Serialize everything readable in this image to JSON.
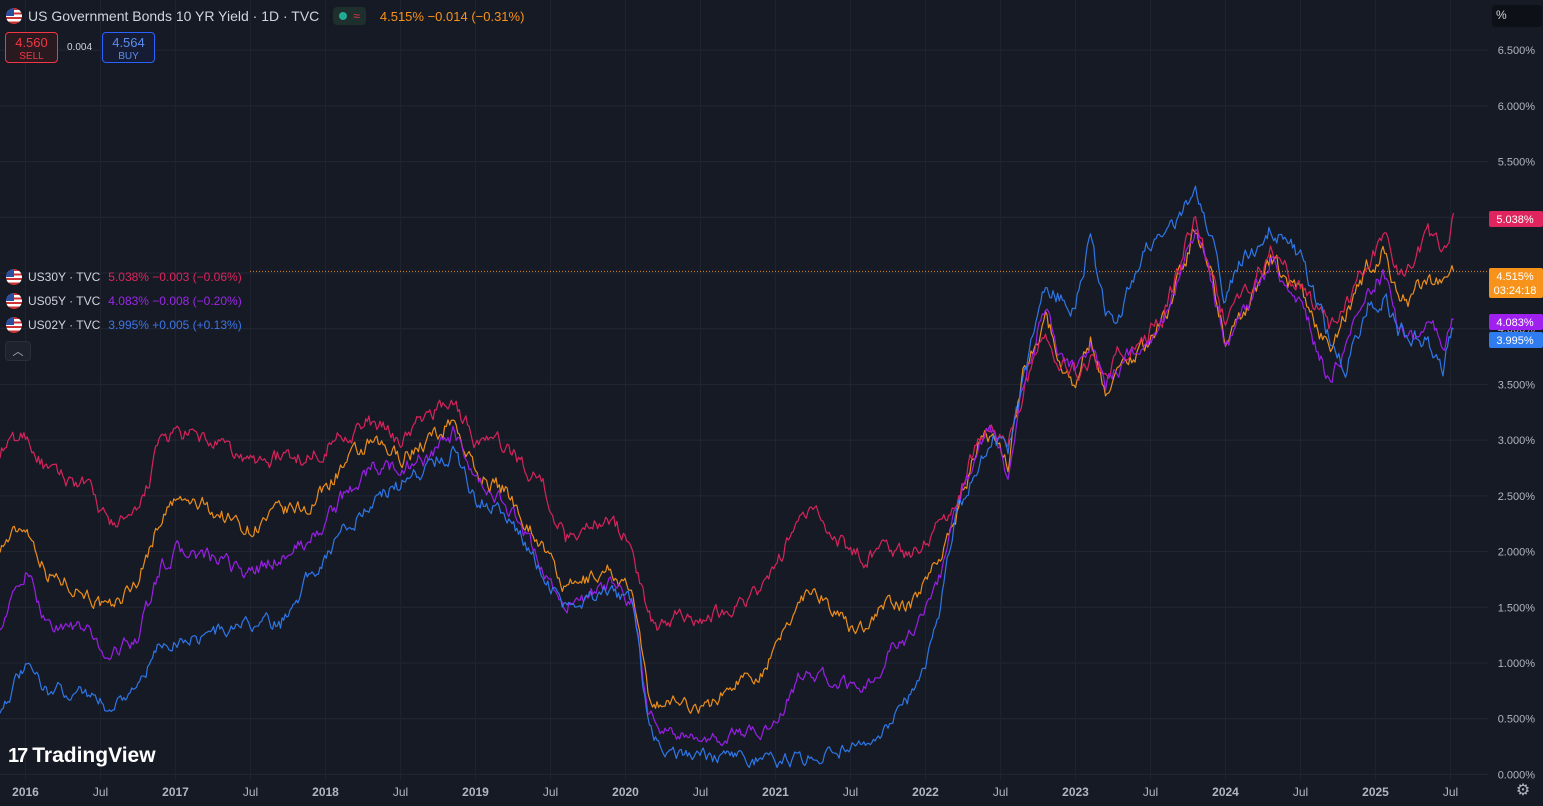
{
  "header": {
    "title": "US Government Bonds 10 YR Yield · 1D · TVC",
    "price_change": "4.515%  −0.014 (−0.31%)",
    "market_status_icon": "open-dot-icon",
    "wave_icon": "≈"
  },
  "trade": {
    "sell_value": "4.560",
    "sell_label": "SELL",
    "spread": "0.004",
    "buy_value": "4.564",
    "buy_label": "BUY"
  },
  "legend_series": [
    {
      "symbol": "US30Y · TVC",
      "values": "5.038%  −0.003 (−0.06%)",
      "color": "#e0245e"
    },
    {
      "symbol": "US05Y · TVC",
      "values": "4.083%  −0.008 (−0.20%)",
      "color": "#9c27e8"
    },
    {
      "symbol": "US02Y · TVC",
      "values": "3.995%  +0.005 (+0.13%)",
      "color": "#3f74e6"
    }
  ],
  "collapse_icon": "chevron-up-icon",
  "unit_label": "%",
  "brand": "TradingView",
  "settings_icon": "gear-icon",
  "chart_data": {
    "type": "line",
    "yaxis_labels": [
      "0.000%",
      "0.500%",
      "1.000%",
      "1.500%",
      "2.000%",
      "2.500%",
      "3.000%",
      "3.500%",
      "4.000%",
      "4.500%",
      "5.000%",
      "5.500%",
      "6.000%",
      "6.500%"
    ],
    "yaxis_ticks": [
      0,
      0.5,
      1,
      1.5,
      2,
      2.5,
      3,
      3.5,
      4,
      4.5,
      5,
      5.5,
      6,
      6.5
    ],
    "ylim": [
      -0.05,
      6.95
    ],
    "xaxis_labels": [
      "2016",
      "Jul",
      "2017",
      "Jul",
      "2018",
      "Jul",
      "2019",
      "Jul",
      "2020",
      "Jul",
      "2021",
      "Jul",
      "2022",
      "Jul",
      "2023",
      "Jul",
      "2024",
      "Jul",
      "2025",
      "Jul"
    ],
    "xaxis_ticks": [
      2016.0,
      2016.5,
      2017.0,
      2017.5,
      2018.0,
      2018.5,
      2019.0,
      2019.5,
      2020.0,
      2020.5,
      2021.0,
      2021.5,
      2022.0,
      2022.5,
      2023.0,
      2023.5,
      2024.0,
      2024.5,
      2025.0,
      2025.5
    ],
    "xlim": [
      2015.83,
      2025.75
    ],
    "grid": true,
    "price_line": 4.515,
    "last_labels": [
      {
        "text": "5.038%",
        "value": 5.038,
        "color": "#e0245e"
      },
      {
        "text": "4.515%",
        "sub": "03:24:18",
        "value": 4.515,
        "color": "#f7931a"
      },
      {
        "text": "4.083%",
        "value": 4.083,
        "color": "#a020f0"
      },
      {
        "text": "3.995%",
        "value": 3.995,
        "color": "#2f7bf0"
      }
    ],
    "series": [
      {
        "id": "US10Y",
        "color": "#f7931a",
        "x": [
          2015.83,
          2016.0,
          2016.15,
          2016.4,
          2016.55,
          2016.75,
          2016.9,
          2017.0,
          2017.2,
          2017.5,
          2017.7,
          2017.9,
          2018.1,
          2018.3,
          2018.5,
          2018.75,
          2018.85,
          2019.0,
          2019.2,
          2019.45,
          2019.6,
          2019.75,
          2019.9,
          2020.05,
          2020.15,
          2020.22,
          2020.35,
          2020.55,
          2020.75,
          2020.9,
          2021.0,
          2021.15,
          2021.25,
          2021.5,
          2021.6,
          2021.75,
          2021.9,
          2022.0,
          2022.1,
          2022.2,
          2022.35,
          2022.45,
          2022.55,
          2022.65,
          2022.8,
          2022.87,
          2023.0,
          2023.1,
          2023.2,
          2023.3,
          2023.45,
          2023.6,
          2023.8,
          2023.9,
          2024.0,
          2024.1,
          2024.3,
          2024.5,
          2024.7,
          2024.8,
          2024.95,
          2025.05,
          2025.15,
          2025.25,
          2025.35,
          2025.45,
          2025.52
        ],
        "values": [
          2.05,
          2.25,
          1.8,
          1.65,
          1.45,
          1.75,
          2.3,
          2.45,
          2.4,
          2.2,
          2.35,
          2.4,
          2.75,
          2.95,
          2.85,
          3.05,
          3.2,
          2.7,
          2.55,
          2.05,
          1.65,
          1.75,
          1.85,
          1.6,
          0.7,
          0.65,
          0.65,
          0.6,
          0.85,
          0.92,
          1.1,
          1.55,
          1.7,
          1.3,
          1.35,
          1.55,
          1.5,
          1.75,
          2.0,
          2.3,
          2.95,
          3.05,
          2.8,
          3.6,
          4.15,
          3.8,
          3.5,
          3.9,
          3.45,
          3.65,
          3.85,
          4.1,
          4.9,
          4.55,
          3.9,
          4.1,
          4.6,
          4.3,
          3.8,
          4.1,
          4.55,
          4.7,
          4.3,
          4.25,
          4.5,
          4.35,
          4.515
        ]
      },
      {
        "id": "US30Y",
        "color": "#e0245e",
        "x": [
          2015.83,
          2016.0,
          2016.15,
          2016.4,
          2016.55,
          2016.75,
          2016.9,
          2017.0,
          2017.2,
          2017.5,
          2017.7,
          2017.9,
          2018.1,
          2018.3,
          2018.5,
          2018.75,
          2018.85,
          2019.0,
          2019.2,
          2019.45,
          2019.6,
          2019.75,
          2019.9,
          2020.05,
          2020.15,
          2020.22,
          2020.35,
          2020.55,
          2020.75,
          2020.9,
          2021.0,
          2021.15,
          2021.25,
          2021.5,
          2021.6,
          2021.75,
          2021.9,
          2022.0,
          2022.1,
          2022.2,
          2022.35,
          2022.45,
          2022.55,
          2022.65,
          2022.8,
          2022.87,
          2023.0,
          2023.1,
          2023.2,
          2023.3,
          2023.45,
          2023.6,
          2023.8,
          2023.9,
          2024.0,
          2024.1,
          2024.3,
          2024.5,
          2024.7,
          2024.8,
          2024.95,
          2025.05,
          2025.15,
          2025.25,
          2025.35,
          2025.45,
          2025.52
        ],
        "values": [
          2.9,
          3.05,
          2.7,
          2.6,
          2.25,
          2.3,
          3.0,
          3.05,
          3.0,
          2.8,
          2.85,
          2.85,
          3.05,
          3.15,
          3.0,
          3.3,
          3.35,
          3.0,
          2.95,
          2.6,
          2.1,
          2.25,
          2.3,
          2.05,
          1.4,
          1.3,
          1.45,
          1.4,
          1.55,
          1.65,
          1.85,
          2.3,
          2.35,
          2.0,
          1.95,
          2.05,
          1.95,
          2.1,
          2.25,
          2.45,
          3.0,
          3.15,
          2.95,
          3.45,
          3.95,
          3.8,
          3.6,
          3.75,
          3.6,
          3.8,
          3.9,
          4.15,
          5.0,
          4.55,
          4.05,
          4.3,
          4.65,
          4.4,
          4.0,
          4.2,
          4.6,
          4.8,
          4.55,
          4.6,
          4.8,
          4.7,
          5.038
        ]
      },
      {
        "id": "US05Y",
        "color": "#a020f0",
        "x": [
          2015.83,
          2016.0,
          2016.15,
          2016.4,
          2016.55,
          2016.75,
          2016.9,
          2017.0,
          2017.2,
          2017.5,
          2017.7,
          2017.9,
          2018.1,
          2018.3,
          2018.5,
          2018.75,
          2018.85,
          2019.0,
          2019.2,
          2019.45,
          2019.6,
          2019.75,
          2019.9,
          2020.05,
          2020.15,
          2020.22,
          2020.35,
          2020.55,
          2020.75,
          2020.9,
          2021.0,
          2021.15,
          2021.25,
          2021.5,
          2021.6,
          2021.75,
          2021.9,
          2022.0,
          2022.1,
          2022.2,
          2022.35,
          2022.45,
          2022.55,
          2022.65,
          2022.8,
          2022.87,
          2023.0,
          2023.1,
          2023.2,
          2023.3,
          2023.45,
          2023.6,
          2023.8,
          2023.9,
          2024.0,
          2024.1,
          2024.3,
          2024.5,
          2024.7,
          2024.8,
          2024.95,
          2025.05,
          2025.15,
          2025.25,
          2025.35,
          2025.45,
          2025.52
        ],
        "values": [
          1.35,
          1.8,
          1.35,
          1.3,
          1.05,
          1.25,
          1.85,
          2.0,
          1.95,
          1.8,
          1.95,
          2.1,
          2.45,
          2.75,
          2.75,
          2.9,
          3.05,
          2.6,
          2.45,
          1.85,
          1.5,
          1.6,
          1.7,
          1.55,
          0.55,
          0.45,
          0.35,
          0.27,
          0.37,
          0.4,
          0.45,
          0.85,
          0.9,
          0.8,
          0.75,
          1.1,
          1.25,
          1.55,
          1.8,
          2.3,
          2.95,
          3.1,
          2.7,
          3.5,
          4.2,
          3.85,
          3.6,
          3.9,
          3.5,
          3.65,
          3.85,
          4.15,
          4.9,
          4.45,
          3.85,
          4.05,
          4.6,
          4.25,
          3.5,
          3.85,
          4.35,
          4.5,
          4.0,
          3.95,
          4.1,
          3.85,
          4.083
        ]
      },
      {
        "id": "US02Y",
        "color": "#2f7bf0",
        "x": [
          2015.83,
          2016.0,
          2016.15,
          2016.4,
          2016.55,
          2016.75,
          2016.9,
          2017.0,
          2017.2,
          2017.5,
          2017.7,
          2017.9,
          2018.1,
          2018.3,
          2018.5,
          2018.75,
          2018.85,
          2019.0,
          2019.2,
          2019.45,
          2019.6,
          2019.75,
          2019.9,
          2020.05,
          2020.15,
          2020.22,
          2020.35,
          2020.55,
          2020.75,
          2020.9,
          2021.0,
          2021.15,
          2021.25,
          2021.5,
          2021.6,
          2021.75,
          2021.9,
          2022.0,
          2022.1,
          2022.2,
          2022.35,
          2022.45,
          2022.55,
          2022.65,
          2022.8,
          2022.87,
          2023.0,
          2023.1,
          2023.2,
          2023.3,
          2023.45,
          2023.6,
          2023.8,
          2023.9,
          2024.0,
          2024.1,
          2024.3,
          2024.5,
          2024.7,
          2024.8,
          2024.95,
          2025.05,
          2025.15,
          2025.25,
          2025.35,
          2025.45,
          2025.52
        ],
        "values": [
          0.6,
          0.95,
          0.75,
          0.75,
          0.6,
          0.8,
          1.15,
          1.2,
          1.25,
          1.35,
          1.35,
          1.8,
          2.15,
          2.45,
          2.6,
          2.85,
          2.9,
          2.5,
          2.35,
          1.8,
          1.5,
          1.6,
          1.6,
          1.55,
          0.45,
          0.25,
          0.2,
          0.15,
          0.14,
          0.13,
          0.12,
          0.14,
          0.15,
          0.25,
          0.22,
          0.4,
          0.7,
          1.0,
          1.5,
          2.3,
          2.8,
          3.0,
          2.9,
          3.5,
          4.45,
          4.3,
          4.2,
          4.8,
          4.1,
          4.1,
          4.75,
          4.9,
          5.15,
          4.85,
          4.25,
          4.6,
          4.95,
          4.65,
          3.9,
          3.6,
          4.25,
          4.3,
          4.0,
          3.95,
          3.9,
          3.65,
          3.995
        ]
      }
    ]
  }
}
